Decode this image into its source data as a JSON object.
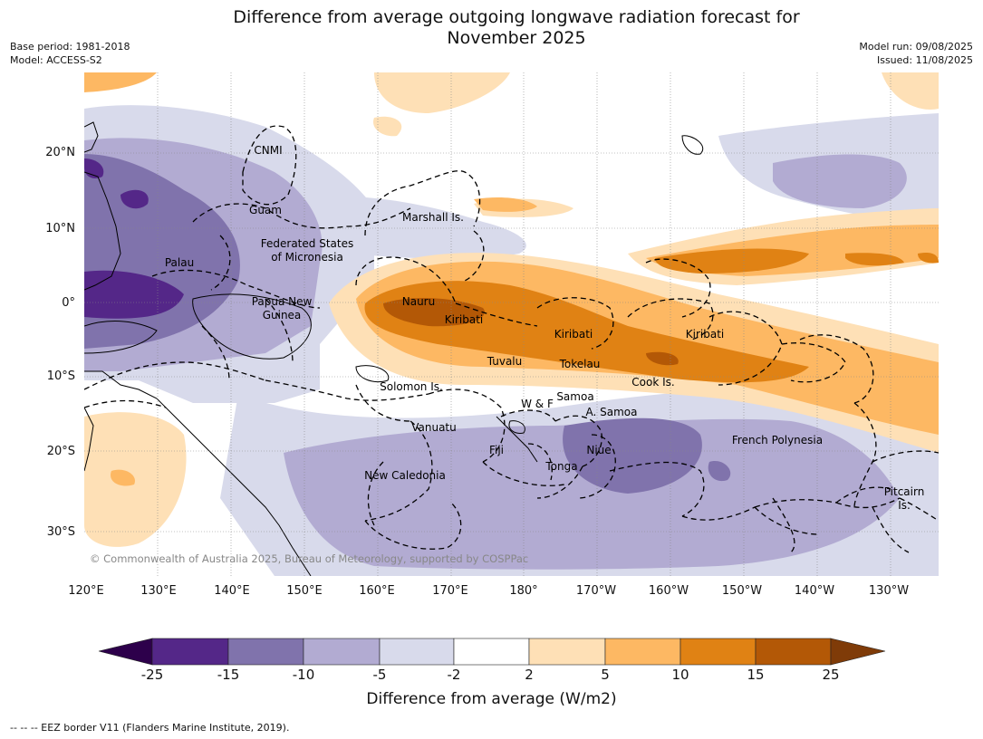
{
  "header": {
    "title_line1": "Difference from average outgoing longwave radiation forecast for",
    "title_line2": "November 2025",
    "base_period": "Base period: 1981-2018",
    "model": "Model: ACCESS-S2",
    "model_run": "Model run: 09/08/2025",
    "issued": "Issued: 11/08/2025"
  },
  "map": {
    "lat_labels": [
      "20°N",
      "10°N",
      "0°",
      "10°S",
      "20°S",
      "30°S"
    ],
    "lon_labels": [
      "120°E",
      "130°E",
      "140°E",
      "150°E",
      "160°E",
      "170°E",
      "180°",
      "170°W",
      "160°W",
      "150°W",
      "140°W",
      "130°W"
    ],
    "regions": [
      "CNMI",
      "Guam",
      "Marshall Is.",
      "Federated States",
      "of Micronesia",
      "Palau",
      "Papua New",
      "Guinea",
      "Nauru",
      "Kiribati",
      "Kiribati",
      "Kiribati",
      "Tuvalu",
      "Tokelau",
      "Cook Is.",
      "Solomon Is.",
      "W & F",
      "Samoa",
      "A. Samoa",
      "Vanuatu",
      "Fiji",
      "Niue",
      "Tonga",
      "French Polynesia",
      "New Caledonia",
      "Pitcairn",
      "Is."
    ],
    "attribution": "© Commonwealth of Australia 2025, Bureau of Meteorology, supported by COSPPac"
  },
  "colorbar": {
    "labels": [
      "-25",
      "-15",
      "-10",
      "-5",
      "-2",
      "2",
      "5",
      "10",
      "15",
      "25"
    ],
    "colors": [
      "#2d004b",
      "#542788",
      "#8073ac",
      "#b2abd2",
      "#d8daeb",
      "#ffffff",
      "#fee0b6",
      "#fdb863",
      "#e08214",
      "#b35806",
      "#7f3b08"
    ],
    "title": "Difference from average (W/m2)"
  },
  "footer": {
    "eez_note": "--  --  -- EEZ border V11 (Flanders Marine Institute, 2019)."
  }
}
